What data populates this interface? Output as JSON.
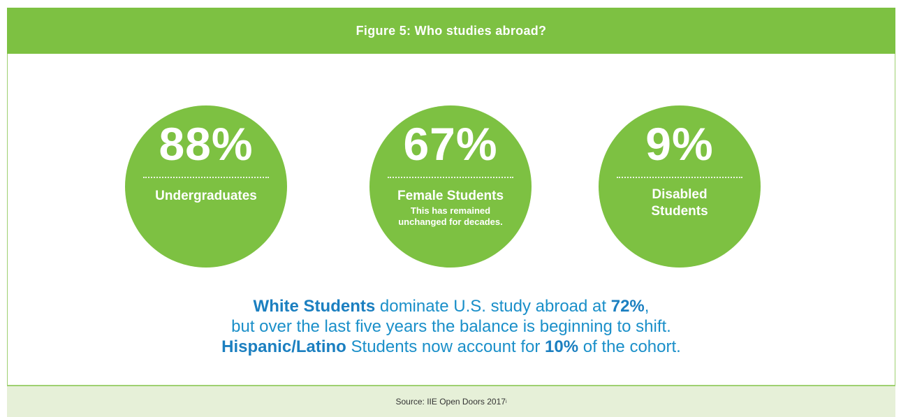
{
  "header": {
    "title": "Figure 5: Who studies abroad?"
  },
  "chart_data": {
    "type": "table",
    "title": "Figure 5: Who studies abroad?",
    "stats": [
      {
        "value": "88%",
        "label": "Undergraduates",
        "note": ""
      },
      {
        "value": "67%",
        "label": "Female Students",
        "note": "This has remained unchanged for decades."
      },
      {
        "value": "9%",
        "label": "Disabled Students",
        "note": ""
      }
    ],
    "summary": {
      "line1_bold": "White Students",
      "line1_text": " dominate U.S. study abroad at ",
      "line1_value": "72%",
      "line1_end": ",",
      "line2": "but over the last five years the balance is beginning to shift.",
      "line3_bold": "Hispanic/Latino",
      "line3_text": " Students now account for ",
      "line3_value": "10%",
      "line3_end": " of the cohort."
    }
  },
  "footer": {
    "source": "Source: IIE Open Doors 2017",
    "footnote_mark": "i"
  },
  "colors": {
    "accent_green": "#7dc142",
    "text_blue": "#1a8fc9",
    "footer_bg": "#e6f0d8"
  }
}
